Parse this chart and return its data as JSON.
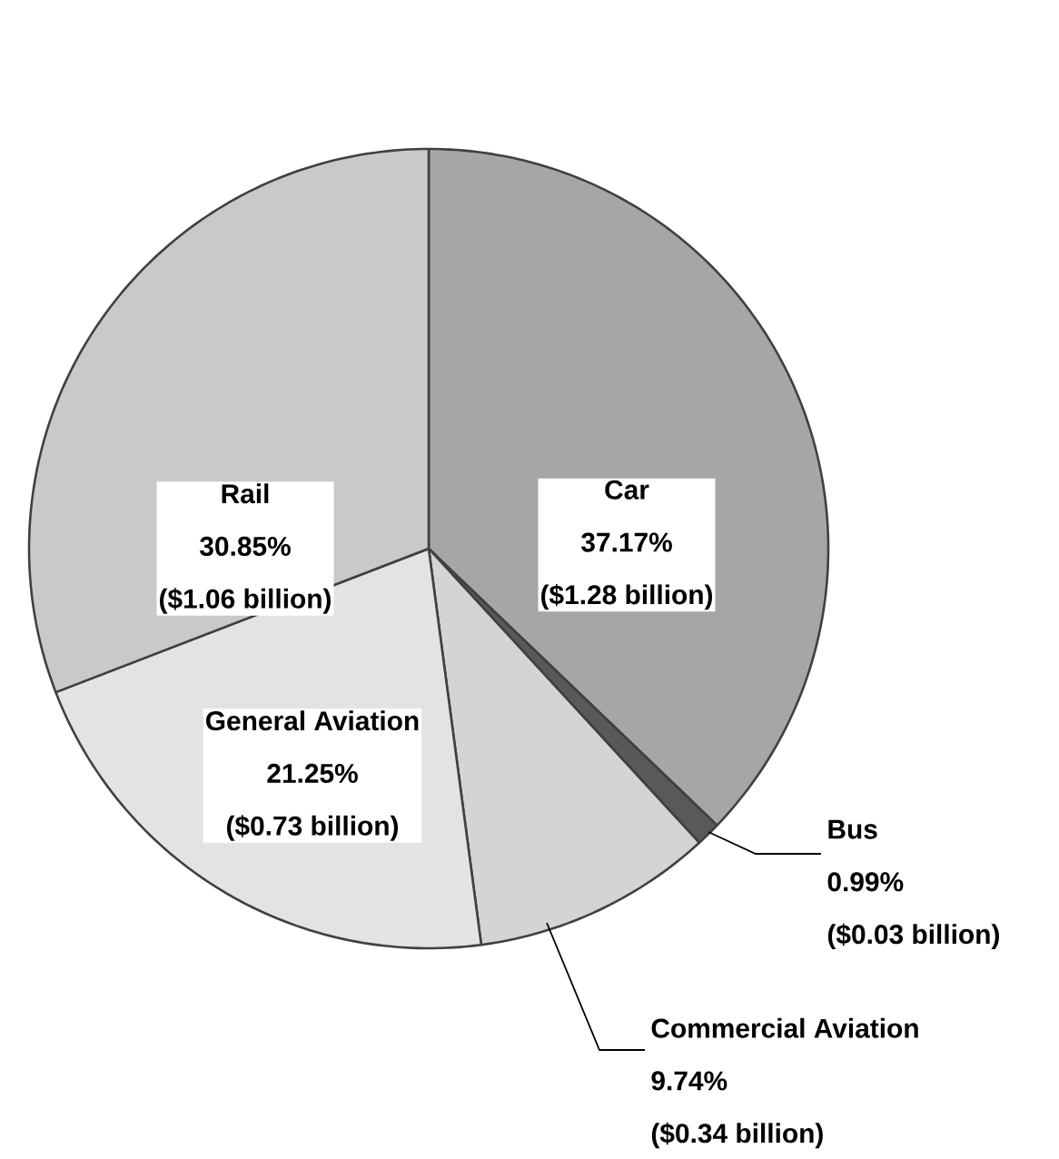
{
  "chart_data": {
    "type": "pie",
    "categories": [
      "Car",
      "Bus",
      "Commercial Aviation",
      "General Aviation",
      "Rail"
    ],
    "values": [
      37.17,
      0.99,
      9.74,
      21.25,
      30.85
    ],
    "colors": [
      "#a6a6a6",
      "#595959",
      "#d4d4d4",
      "#e3e3e3",
      "#c9c9c9"
    ],
    "value_labels": [
      "37.17%",
      "0.99%",
      "9.74%",
      "21.25%",
      "30.85%"
    ],
    "annotations": [
      "($1.28 billion)",
      "($0.03 billion)",
      "($0.34 billion)",
      "($0.73 billion)",
      "($1.06 billion)"
    ]
  }
}
